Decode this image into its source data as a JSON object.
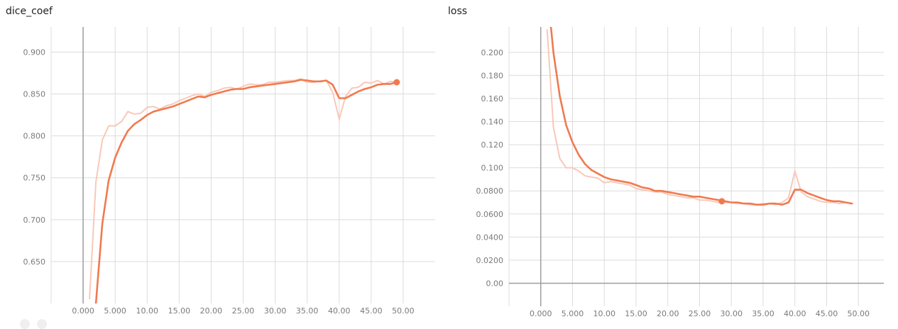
{
  "chart_data": [
    {
      "type": "line",
      "title": "dice_coef",
      "xlabel": "",
      "ylabel": "",
      "xlim": [
        -5,
        55
      ],
      "ylim": [
        0.6,
        0.93
      ],
      "x_ticks": [
        0,
        5,
        10,
        15,
        20,
        25,
        30,
        35,
        40,
        45,
        50
      ],
      "x_tick_labels": [
        "0.000",
        "5.000",
        "10.00",
        "15.00",
        "20.00",
        "25.00",
        "30.00",
        "35.00",
        "40.00",
        "45.00",
        "50.00"
      ],
      "y_ticks": [
        0.65,
        0.7,
        0.75,
        0.8,
        0.85,
        0.9
      ],
      "y_tick_labels": [
        "0.650",
        "0.700",
        "0.750",
        "0.800",
        "0.850",
        "0.900"
      ],
      "grid": true,
      "series": [
        {
          "role": "raw",
          "color": "#f9c8b8",
          "x": [
            1,
            2,
            3,
            4,
            5,
            6,
            7,
            8,
            9,
            10,
            11,
            12,
            13,
            14,
            15,
            16,
            17,
            18,
            19,
            20,
            21,
            22,
            23,
            24,
            25,
            26,
            27,
            28,
            29,
            30,
            31,
            32,
            33,
            34,
            35,
            36,
            37,
            38,
            39,
            40,
            41,
            42,
            43,
            44,
            45,
            46,
            47,
            48,
            49
          ],
          "y": [
            0.605,
            0.745,
            0.795,
            0.812,
            0.812,
            0.817,
            0.829,
            0.826,
            0.827,
            0.834,
            0.835,
            0.832,
            0.836,
            0.838,
            0.842,
            0.845,
            0.848,
            0.85,
            0.847,
            0.852,
            0.854,
            0.857,
            0.858,
            0.856,
            0.859,
            0.862,
            0.861,
            0.861,
            0.864,
            0.864,
            0.865,
            0.866,
            0.866,
            0.868,
            0.864,
            0.864,
            0.865,
            0.866,
            0.852,
            0.82,
            0.847,
            0.857,
            0.858,
            0.864,
            0.863,
            0.866,
            0.862,
            0.865,
            0.864
          ]
        },
        {
          "role": "smoothed",
          "color": "#f07a4f",
          "x": [
            2,
            3,
            4,
            5,
            6,
            7,
            8,
            9,
            10,
            11,
            12,
            13,
            14,
            15,
            16,
            17,
            18,
            19,
            20,
            21,
            22,
            23,
            24,
            25,
            26,
            27,
            28,
            29,
            30,
            31,
            32,
            33,
            34,
            35,
            36,
            37,
            38,
            39,
            40,
            41,
            42,
            43,
            44,
            45,
            46,
            47,
            48,
            49
          ],
          "y": [
            0.6,
            0.695,
            0.747,
            0.774,
            0.792,
            0.806,
            0.814,
            0.819,
            0.825,
            0.829,
            0.831,
            0.833,
            0.835,
            0.838,
            0.841,
            0.844,
            0.847,
            0.846,
            0.849,
            0.851,
            0.853,
            0.855,
            0.856,
            0.856,
            0.858,
            0.859,
            0.86,
            0.861,
            0.862,
            0.863,
            0.864,
            0.865,
            0.867,
            0.866,
            0.865,
            0.865,
            0.866,
            0.861,
            0.845,
            0.845,
            0.849,
            0.853,
            0.856,
            0.858,
            0.861,
            0.862,
            0.862,
            0.864
          ]
        }
      ],
      "marker": {
        "x": 49,
        "y": 0.864
      }
    },
    {
      "type": "line",
      "title": "loss",
      "xlabel": "",
      "ylabel": "",
      "xlim": [
        -5,
        54
      ],
      "ylim": [
        -0.02,
        0.222
      ],
      "x_ticks": [
        0,
        5,
        10,
        15,
        20,
        25,
        30,
        35,
        40,
        45,
        50
      ],
      "x_tick_labels": [
        "0.000",
        "5.000",
        "10.00",
        "15.00",
        "20.00",
        "25.00",
        "30.00",
        "35.00",
        "40.00",
        "45.00",
        "50.00"
      ],
      "y_ticks": [
        0,
        0.02,
        0.04,
        0.06,
        0.08,
        0.1,
        0.12,
        0.14,
        0.16,
        0.18,
        0.2
      ],
      "y_tick_labels": [
        "0.00",
        "0.0200",
        "0.0400",
        "0.0600",
        "0.0800",
        "0.100",
        "0.120",
        "0.140",
        "0.160",
        "0.180",
        "0.200"
      ],
      "grid": true,
      "series": [
        {
          "role": "raw",
          "color": "#f9c8b8",
          "x": [
            1,
            2,
            3,
            4,
            5,
            6,
            7,
            8,
            9,
            10,
            11,
            12,
            13,
            14,
            15,
            16,
            17,
            18,
            19,
            20,
            21,
            22,
            23,
            24,
            25,
            26,
            27,
            28,
            29,
            30,
            31,
            32,
            33,
            34,
            35,
            36,
            37,
            38,
            39,
            40,
            41,
            42,
            43,
            44,
            45,
            46,
            47,
            48,
            49
          ],
          "y": [
            0.22,
            0.135,
            0.108,
            0.1,
            0.1,
            0.097,
            0.093,
            0.092,
            0.091,
            0.087,
            0.088,
            0.087,
            0.086,
            0.085,
            0.082,
            0.081,
            0.08,
            0.079,
            0.079,
            0.077,
            0.076,
            0.075,
            0.074,
            0.074,
            0.072,
            0.072,
            0.071,
            0.07,
            0.07,
            0.07,
            0.069,
            0.069,
            0.068,
            0.068,
            0.069,
            0.069,
            0.068,
            0.07,
            0.074,
            0.097,
            0.079,
            0.075,
            0.073,
            0.071,
            0.07,
            0.07,
            0.069,
            0.07,
            0.069
          ]
        },
        {
          "role": "smoothed",
          "color": "#f07a4f",
          "x": [
            1.6,
            2,
            3,
            4,
            5,
            6,
            7,
            8,
            9,
            10,
            11,
            12,
            13,
            14,
            15,
            16,
            17,
            18,
            19,
            20,
            21,
            22,
            23,
            24,
            25,
            26,
            27,
            28,
            29,
            30,
            31,
            32,
            33,
            34,
            35,
            36,
            37,
            38,
            39,
            40,
            41,
            42,
            43,
            44,
            45,
            46,
            47,
            48,
            49
          ],
          "y": [
            0.222,
            0.2,
            0.162,
            0.137,
            0.122,
            0.111,
            0.103,
            0.098,
            0.095,
            0.092,
            0.09,
            0.089,
            0.088,
            0.087,
            0.085,
            0.083,
            0.082,
            0.08,
            0.08,
            0.079,
            0.078,
            0.077,
            0.076,
            0.075,
            0.075,
            0.074,
            0.073,
            0.072,
            0.071,
            0.07,
            0.07,
            0.069,
            0.069,
            0.068,
            0.068,
            0.069,
            0.069,
            0.068,
            0.07,
            0.081,
            0.081,
            0.078,
            0.076,
            0.074,
            0.072,
            0.071,
            0.071,
            0.07,
            0.069
          ]
        }
      ],
      "marker": {
        "x": 28.5,
        "y": 0.071
      }
    }
  ]
}
